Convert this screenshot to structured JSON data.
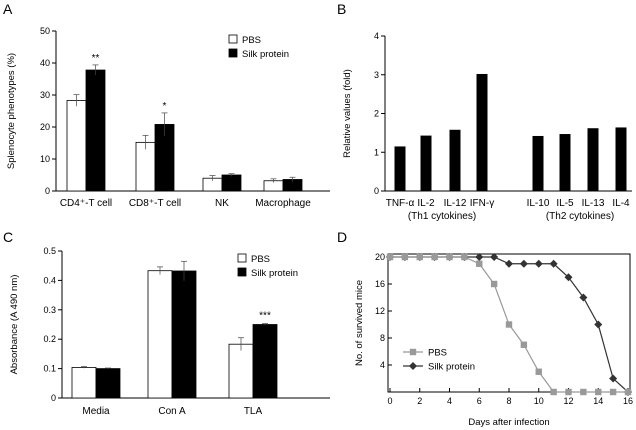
{
  "chart_data": [
    {
      "panel": "A",
      "type": "bar",
      "ylabel": "Splenocyte phenotypes (%)",
      "ylim": [
        0,
        50
      ],
      "yticks": [
        0,
        10,
        20,
        30,
        40,
        50
      ],
      "categories": [
        "CD4⁺-T cell",
        "CD8⁺-T cell",
        "NK",
        "Macrophage"
      ],
      "series": [
        {
          "name": "PBS",
          "fill": "#ffffff",
          "values": [
            28.3,
            15.2,
            4.0,
            3.2
          ],
          "errors": [
            1.8,
            2.2,
            0.8,
            0.6
          ]
        },
        {
          "name": "Silk protein",
          "fill": "#000000",
          "values": [
            37.8,
            20.8,
            5.0,
            3.6
          ],
          "errors": [
            1.6,
            3.6,
            0.4,
            0.7
          ]
        }
      ],
      "annotations": [
        "**",
        "*",
        "",
        ""
      ],
      "legend": "top-right"
    },
    {
      "panel": "B",
      "type": "bar",
      "ylabel": "Relative values (fold)",
      "ylim": [
        0,
        4
      ],
      "yticks": [
        0,
        1,
        2,
        3,
        4
      ],
      "categories": [
        "TNF-α",
        "IL-2",
        "IL-12",
        "IFN-γ",
        "IL-10",
        "IL-5",
        "IL-13",
        "IL-4"
      ],
      "values": [
        1.15,
        1.43,
        1.58,
        3.02,
        1.42,
        1.47,
        1.62,
        1.64
      ],
      "groups": [
        "(Th1 cytokines)",
        "(Th2 cytokines)"
      ]
    },
    {
      "panel": "C",
      "type": "bar",
      "ylabel": "Absorbance (A 490 nm)",
      "ylim": [
        0,
        0.5
      ],
      "yticks": [
        "0",
        "0.1",
        "0.2",
        "0.3",
        "0.4",
        "0.5"
      ],
      "categories": [
        "Media",
        "Con A",
        "TLA"
      ],
      "series": [
        {
          "name": "PBS",
          "fill": "#ffffff",
          "values": [
            0.104,
            0.433,
            0.183
          ],
          "errors": [
            0.003,
            0.013,
            0.022
          ]
        },
        {
          "name": "Silk protein",
          "fill": "#000000",
          "values": [
            0.1,
            0.432,
            0.25
          ],
          "errors": [
            0.002,
            0.033,
            0.003
          ]
        }
      ],
      "annotations": [
        "",
        "",
        "***"
      ],
      "legend": "top-right"
    },
    {
      "panel": "D",
      "type": "line",
      "ylabel": "No. of survived mice",
      "xlabel": "Days after infection",
      "xlim": [
        0,
        16
      ],
      "ylim": [
        0,
        20
      ],
      "xticks": [
        0,
        2,
        4,
        6,
        8,
        10,
        12,
        14,
        16
      ],
      "yticks": [
        4,
        8,
        12,
        16,
        20
      ],
      "x": [
        0,
        1,
        2,
        3,
        4,
        5,
        6,
        7,
        8,
        9,
        10,
        11,
        12,
        13,
        14,
        15,
        16
      ],
      "series": [
        {
          "name": "PBS",
          "marker": "square",
          "color": "#999999",
          "values": [
            20,
            20,
            20,
            20,
            20,
            20,
            19,
            16,
            10,
            7,
            3,
            0,
            0,
            0,
            0,
            0,
            0
          ]
        },
        {
          "name": "Silk protein",
          "marker": "diamond",
          "color": "#333333",
          "values": [
            20,
            20,
            20,
            20,
            20,
            20,
            20,
            20,
            19,
            19,
            19,
            19,
            17,
            14,
            10,
            2,
            0
          ]
        }
      ],
      "legend": "bottom-left"
    }
  ]
}
